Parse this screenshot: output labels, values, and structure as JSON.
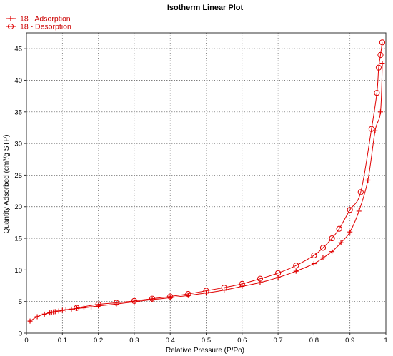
{
  "chart_data": {
    "type": "line",
    "title": "Isotherm Linear Plot",
    "xlabel": "Relative Pressure (P/Po)",
    "ylabel": "Quantity Adsorbed (cm³/g STP)",
    "xlim": [
      0,
      1.0
    ],
    "ylim": [
      0,
      47.5
    ],
    "xticks": [
      0,
      0.1,
      0.2,
      0.3,
      0.4,
      0.5,
      0.6,
      0.7,
      0.8,
      0.9,
      1
    ],
    "yticks": [
      0,
      5,
      10,
      15,
      20,
      25,
      30,
      35,
      40,
      45
    ],
    "grid": true,
    "legend_position": "top-left",
    "series": [
      {
        "name": "18 - Adsorption",
        "color": "#e00000",
        "marker": "plus",
        "x": [
          0.01,
          0.03,
          0.05,
          0.065,
          0.07,
          0.075,
          0.08,
          0.09,
          0.1,
          0.11,
          0.125,
          0.14,
          0.16,
          0.18,
          0.2,
          0.25,
          0.3,
          0.35,
          0.4,
          0.45,
          0.5,
          0.55,
          0.6,
          0.65,
          0.7,
          0.75,
          0.8,
          0.825,
          0.85,
          0.875,
          0.9,
          0.925,
          0.95,
          0.97,
          0.985,
          0.99
        ],
        "y": [
          1.9,
          2.6,
          3.0,
          3.2,
          3.3,
          3.35,
          3.4,
          3.5,
          3.6,
          3.7,
          3.8,
          3.9,
          4.0,
          4.15,
          4.3,
          4.6,
          4.95,
          5.3,
          5.6,
          5.95,
          6.35,
          6.8,
          7.4,
          8.0,
          8.8,
          9.8,
          11.0,
          11.9,
          12.9,
          14.3,
          16.0,
          19.3,
          24.2,
          32.0,
          35.0,
          42.6
        ]
      },
      {
        "name": "18 - Desorption",
        "color": "#e00000",
        "marker": "circle",
        "x": [
          0.99,
          0.985,
          0.98,
          0.975,
          0.96,
          0.93,
          0.9,
          0.87,
          0.85,
          0.825,
          0.8,
          0.75,
          0.7,
          0.65,
          0.6,
          0.55,
          0.5,
          0.45,
          0.4,
          0.35,
          0.3,
          0.25,
          0.2,
          0.14
        ],
        "y": [
          46.0,
          44.0,
          42.0,
          38.0,
          32.3,
          22.3,
          19.5,
          16.5,
          15.0,
          13.5,
          12.3,
          10.7,
          9.5,
          8.6,
          7.8,
          7.2,
          6.7,
          6.2,
          5.8,
          5.45,
          5.1,
          4.8,
          4.55,
          4.0
        ]
      }
    ]
  }
}
